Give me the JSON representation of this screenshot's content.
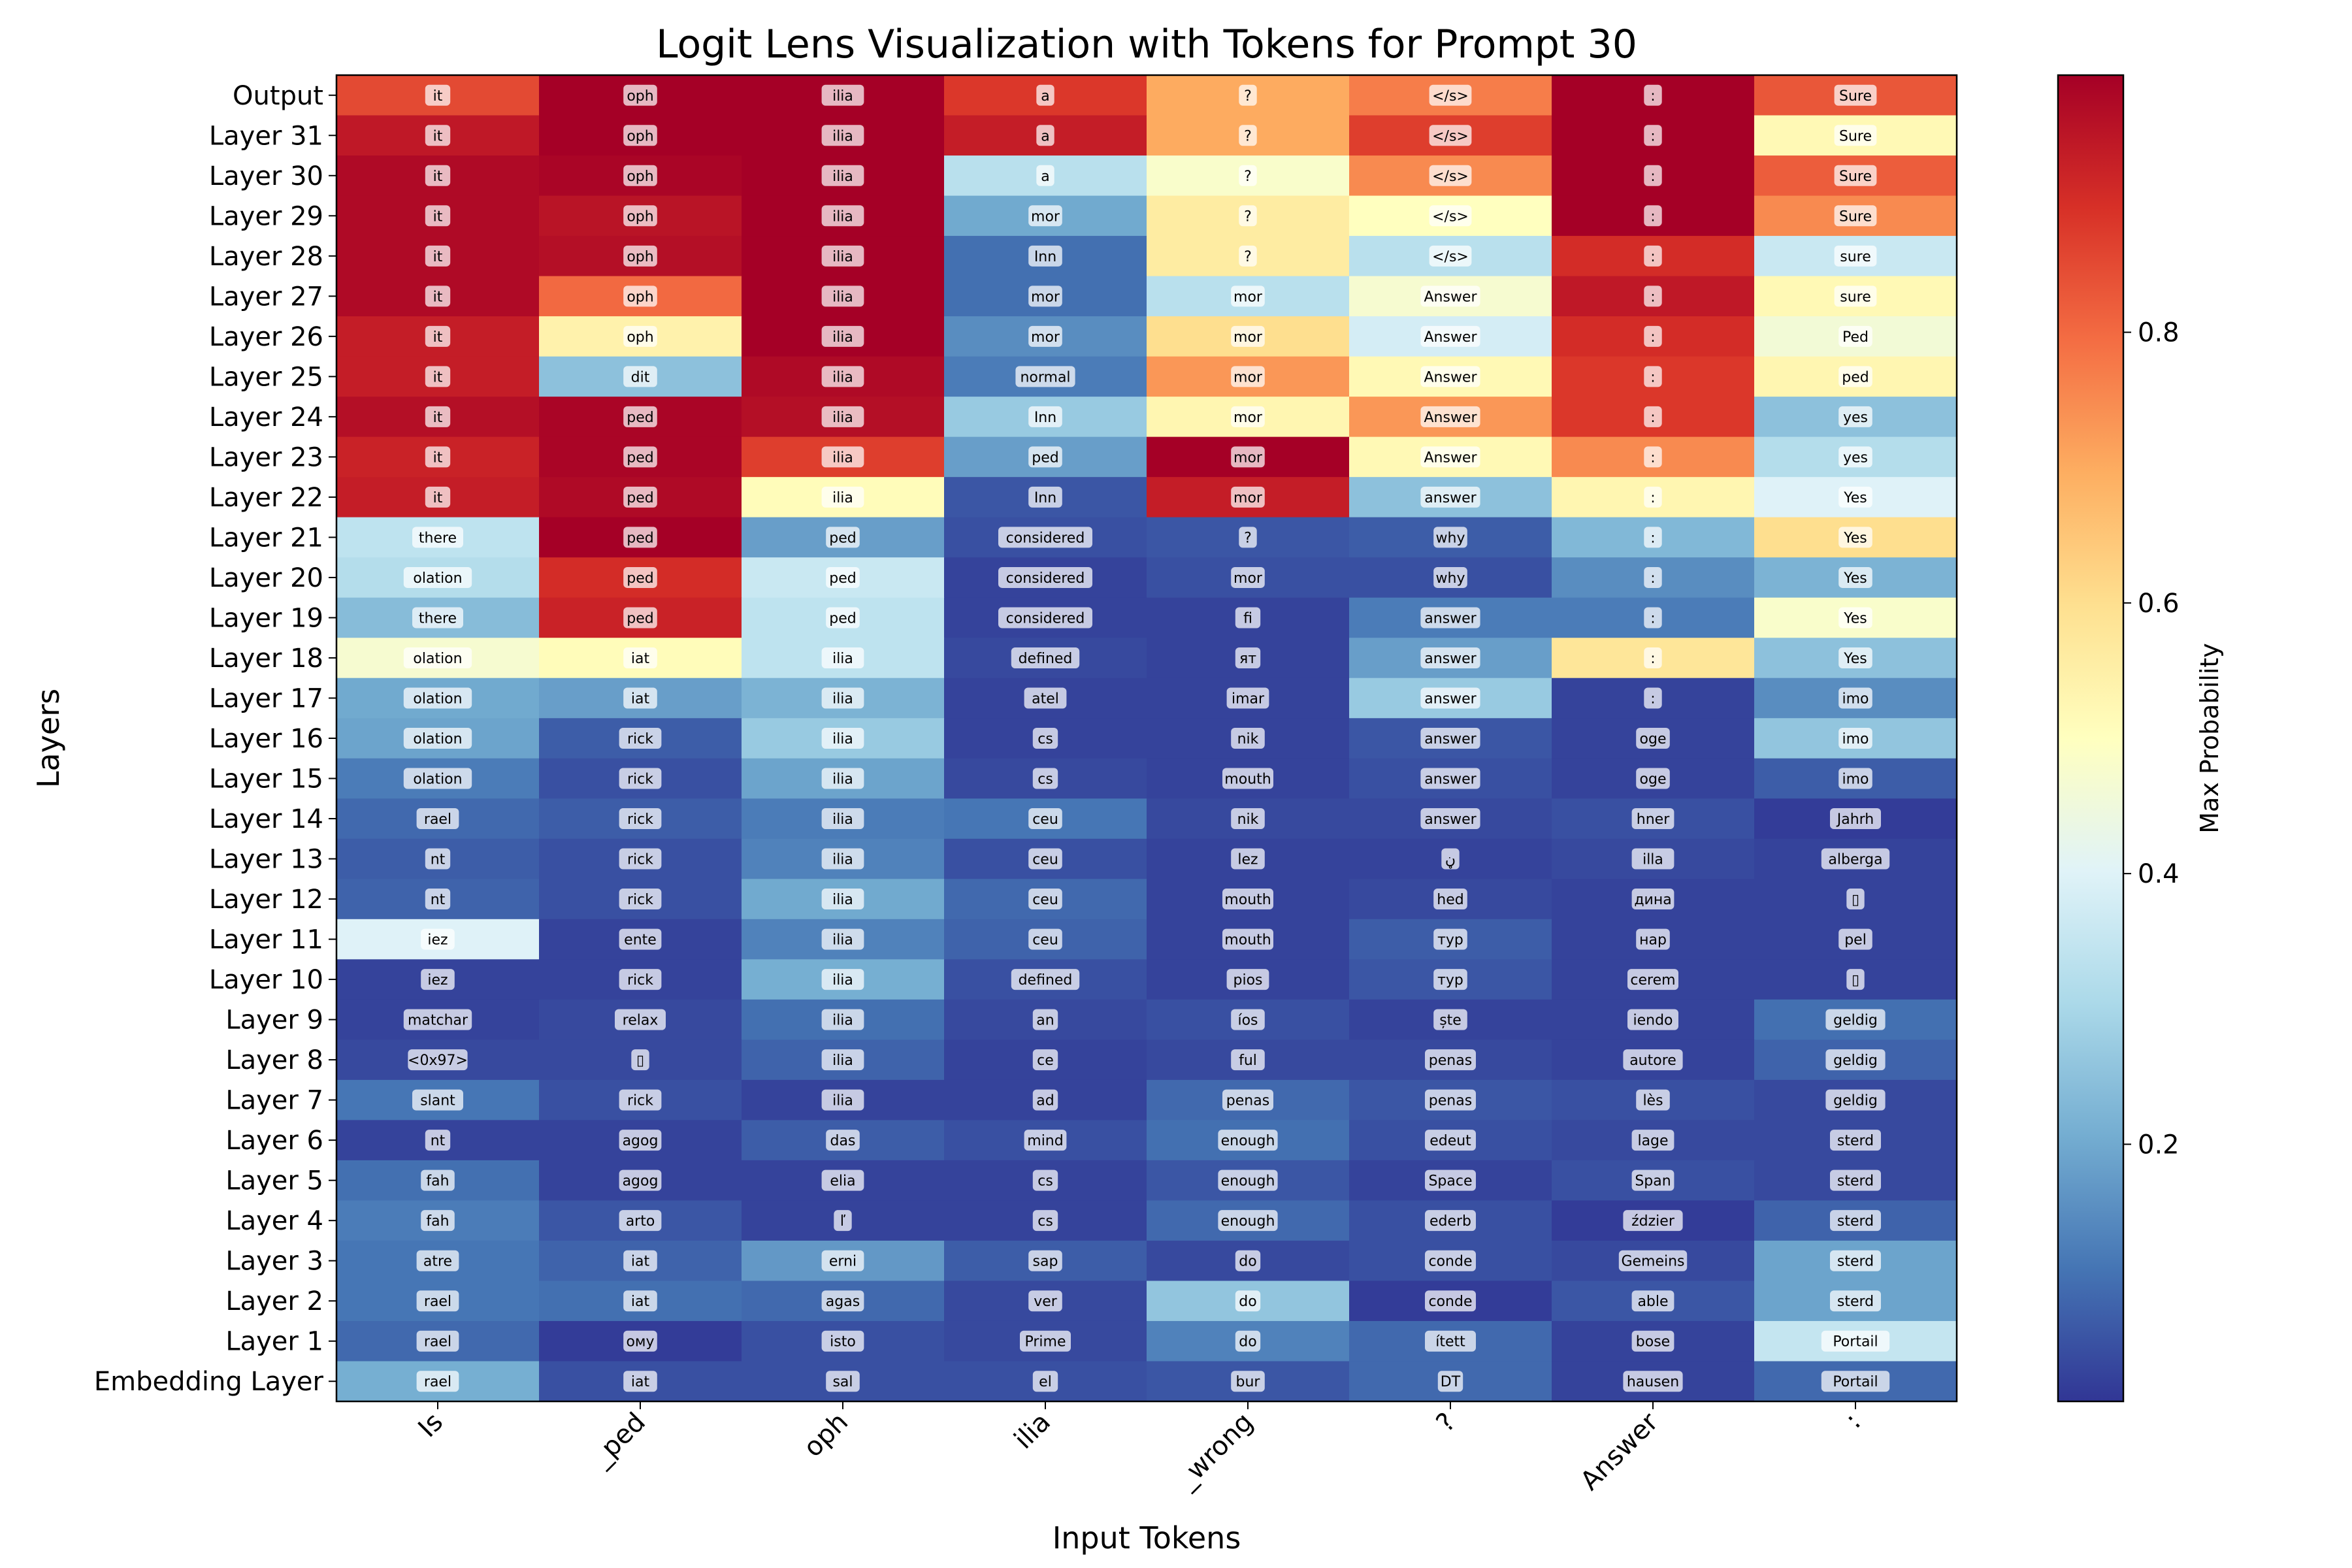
{
  "chart_data": {
    "type": "heatmap",
    "title": "Logit Lens Visualization with Tokens for Prompt 30",
    "xlabel": "Input Tokens",
    "ylabel": "Layers",
    "colorbar_label": "Max Probability",
    "colorbar_ticks": [
      0.2,
      0.4,
      0.6,
      0.8
    ],
    "colorbar_range": [
      0.01,
      0.99
    ],
    "colormap": [
      "#313695",
      "#4575b4",
      "#74add1",
      "#abd9e9",
      "#e0f3f8",
      "#ffffbf",
      "#fee090",
      "#fdae61",
      "#f46d43",
      "#d73027",
      "#a50026"
    ],
    "x_tokens": [
      "Is",
      "_ped",
      "oph",
      "ilia",
      "_wrong",
      "?",
      "Answer",
      ":"
    ],
    "rows": [
      "Output",
      "Layer 31",
      "Layer 30",
      "Layer 29",
      "Layer 28",
      "Layer 27",
      "Layer 26",
      "Layer 25",
      "Layer 24",
      "Layer 23",
      "Layer 22",
      "Layer 21",
      "Layer 20",
      "Layer 19",
      "Layer 18",
      "Layer 17",
      "Layer 16",
      "Layer 15",
      "Layer 14",
      "Layer 13",
      "Layer 12",
      "Layer 11",
      "Layer 10",
      "Layer 9",
      "Layer 8",
      "Layer 7",
      "Layer 6",
      "Layer 5",
      "Layer 4",
      "Layer 3",
      "Layer 2",
      "Layer 1",
      "Embedding Layer"
    ],
    "cell_tokens": [
      [
        "it",
        "oph",
        "ilia",
        "a",
        "?",
        "</s>",
        ":",
        "Sure"
      ],
      [
        "it",
        "oph",
        "ilia",
        "a",
        "?",
        "</s>",
        ":",
        "Sure"
      ],
      [
        "it",
        "oph",
        "ilia",
        "a",
        "?",
        "</s>",
        ":",
        "Sure"
      ],
      [
        "it",
        "oph",
        "ilia",
        "mor",
        "?",
        "</s>",
        ":",
        "Sure"
      ],
      [
        "it",
        "oph",
        "ilia",
        "Inn",
        "?",
        "</s>",
        ":",
        "sure"
      ],
      [
        "it",
        "oph",
        "ilia",
        "mor",
        "mor",
        "Answer",
        ":",
        "sure"
      ],
      [
        "it",
        "oph",
        "ilia",
        "mor",
        "mor",
        "Answer",
        ":",
        "Ped"
      ],
      [
        "it",
        "dit",
        "ilia",
        "normal",
        "mor",
        "Answer",
        ":",
        "ped"
      ],
      [
        "it",
        "ped",
        "ilia",
        "Inn",
        "mor",
        "Answer",
        ":",
        "yes"
      ],
      [
        "it",
        "ped",
        "ilia",
        "ped",
        "mor",
        "Answer",
        ":",
        "yes"
      ],
      [
        "it",
        "ped",
        "ilia",
        "Inn",
        "mor",
        "answer",
        ":",
        "Yes"
      ],
      [
        "there",
        "ped",
        "ped",
        "considered",
        "?",
        "why",
        ":",
        "Yes"
      ],
      [
        "olation",
        "ped",
        "ped",
        "considered",
        "mor",
        "why",
        ":",
        "Yes"
      ],
      [
        "there",
        "ped",
        "ped",
        "considered",
        "fi",
        "answer",
        ":",
        "Yes"
      ],
      [
        "olation",
        "iat",
        "ilia",
        "defined",
        "ят",
        "answer",
        ":",
        "Yes"
      ],
      [
        "olation",
        "iat",
        "ilia",
        "atel",
        "imar",
        "answer",
        ":",
        "imo"
      ],
      [
        "olation",
        "rick",
        "ilia",
        "cs",
        "nik",
        "answer",
        "oge",
        "imo"
      ],
      [
        "olation",
        "rick",
        "ilia",
        "cs",
        "mouth",
        "answer",
        "oge",
        "imo"
      ],
      [
        "rael",
        "rick",
        "ilia",
        "ceu",
        "nik",
        "answer",
        "hner",
        "Jahrh"
      ],
      [
        "nt",
        "rick",
        "ilia",
        "ceu",
        "lez",
        "ڼ",
        "illa",
        "alberga"
      ],
      [
        "nt",
        "rick",
        "ilia",
        "ceu",
        "mouth",
        "hed",
        "дина",
        "▯"
      ],
      [
        "iez",
        "ente",
        "ilia",
        "ceu",
        "mouth",
        "тур",
        "нар",
        "pel"
      ],
      [
        "iez",
        "rick",
        "ilia",
        "defined",
        "pios",
        "тур",
        "cerem",
        "▯"
      ],
      [
        "matchar",
        "relax",
        "ilia",
        "an",
        "íos",
        "ște",
        "iendo",
        "geldig"
      ],
      [
        "<0x97>",
        "▯",
        "ilia",
        "ce",
        "ful",
        "penas",
        "autore",
        "geldig"
      ],
      [
        "slant",
        "rick",
        "ilia",
        "ad",
        "penas",
        "penas",
        "lès",
        "geldig"
      ],
      [
        "nt",
        "agog",
        "das",
        "mind",
        "enough",
        "edeut",
        "lage",
        "sterd"
      ],
      [
        "fah",
        "agog",
        "elia",
        "cs",
        "enough",
        "Space",
        "Span",
        "sterd"
      ],
      [
        "fah",
        "arto",
        "ľ",
        "cs",
        "enough",
        "ederb",
        "ździer",
        "sterd"
      ],
      [
        "atre",
        "iat",
        "erni",
        "sap",
        "do",
        "conde",
        "Gemeins",
        "sterd"
      ],
      [
        "rael",
        "iat",
        "agas",
        "ver",
        "do",
        "conde",
        "able",
        "sterd"
      ],
      [
        "rael",
        "ому",
        "isto",
        "Prime",
        "do",
        "ített",
        "bose",
        "Portail"
      ],
      [
        "rael",
        "iat",
        "sal",
        "el",
        "bur",
        "DT",
        "hausen",
        "Portail"
      ]
    ],
    "values": [
      [
        0.85,
        0.99,
        0.99,
        0.88,
        0.7,
        0.77,
        0.99,
        0.83
      ],
      [
        0.94,
        0.99,
        0.99,
        0.93,
        0.7,
        0.87,
        0.99,
        0.52
      ],
      [
        0.97,
        0.98,
        0.99,
        0.33,
        0.48,
        0.75,
        0.99,
        0.82
      ],
      [
        0.97,
        0.95,
        0.99,
        0.2,
        0.56,
        0.5,
        0.99,
        0.75
      ],
      [
        0.97,
        0.96,
        0.99,
        0.1,
        0.56,
        0.33,
        0.9,
        0.36
      ],
      [
        0.97,
        0.8,
        0.99,
        0.1,
        0.33,
        0.47,
        0.94,
        0.52
      ],
      [
        0.93,
        0.54,
        0.99,
        0.15,
        0.6,
        0.38,
        0.9,
        0.46
      ],
      [
        0.93,
        0.25,
        0.97,
        0.12,
        0.73,
        0.52,
        0.88,
        0.53
      ],
      [
        0.96,
        0.98,
        0.96,
        0.27,
        0.53,
        0.73,
        0.88,
        0.25
      ],
      [
        0.92,
        0.98,
        0.87,
        0.18,
        0.99,
        0.52,
        0.75,
        0.32
      ],
      [
        0.93,
        0.97,
        0.51,
        0.06,
        0.93,
        0.25,
        0.53,
        0.4
      ],
      [
        0.34,
        0.99,
        0.18,
        0.05,
        0.06,
        0.07,
        0.23,
        0.6
      ],
      [
        0.32,
        0.9,
        0.36,
        0.03,
        0.05,
        0.05,
        0.15,
        0.22
      ],
      [
        0.24,
        0.92,
        0.34,
        0.03,
        0.03,
        0.12,
        0.12,
        0.48
      ],
      [
        0.47,
        0.51,
        0.34,
        0.04,
        0.03,
        0.18,
        0.58,
        0.25
      ],
      [
        0.2,
        0.18,
        0.22,
        0.03,
        0.03,
        0.27,
        0.03,
        0.15
      ],
      [
        0.19,
        0.07,
        0.27,
        0.03,
        0.03,
        0.06,
        0.03,
        0.26
      ],
      [
        0.12,
        0.05,
        0.19,
        0.04,
        0.03,
        0.05,
        0.03,
        0.07
      ],
      [
        0.09,
        0.07,
        0.12,
        0.11,
        0.04,
        0.04,
        0.05,
        0.02
      ],
      [
        0.07,
        0.05,
        0.13,
        0.05,
        0.03,
        0.03,
        0.04,
        0.03
      ],
      [
        0.08,
        0.05,
        0.2,
        0.09,
        0.03,
        0.04,
        0.03,
        0.03
      ],
      [
        0.4,
        0.03,
        0.13,
        0.08,
        0.03,
        0.07,
        0.03,
        0.03
      ],
      [
        0.03,
        0.03,
        0.21,
        0.05,
        0.03,
        0.06,
        0.03,
        0.03
      ],
      [
        0.03,
        0.04,
        0.1,
        0.04,
        0.05,
        0.03,
        0.03,
        0.1
      ],
      [
        0.04,
        0.04,
        0.08,
        0.03,
        0.04,
        0.04,
        0.03,
        0.08
      ],
      [
        0.11,
        0.05,
        0.03,
        0.03,
        0.09,
        0.06,
        0.05,
        0.04
      ],
      [
        0.03,
        0.03,
        0.07,
        0.05,
        0.1,
        0.05,
        0.04,
        0.04
      ],
      [
        0.1,
        0.03,
        0.03,
        0.03,
        0.06,
        0.03,
        0.05,
        0.04
      ],
      [
        0.12,
        0.06,
        0.03,
        0.03,
        0.09,
        0.05,
        0.02,
        0.08
      ],
      [
        0.11,
        0.08,
        0.17,
        0.07,
        0.04,
        0.05,
        0.04,
        0.19
      ],
      [
        0.11,
        0.1,
        0.09,
        0.04,
        0.26,
        0.02,
        0.06,
        0.19
      ],
      [
        0.09,
        0.02,
        0.05,
        0.04,
        0.13,
        0.09,
        0.03,
        0.35
      ],
      [
        0.21,
        0.05,
        0.05,
        0.05,
        0.06,
        0.09,
        0.03,
        0.09
      ]
    ]
  }
}
